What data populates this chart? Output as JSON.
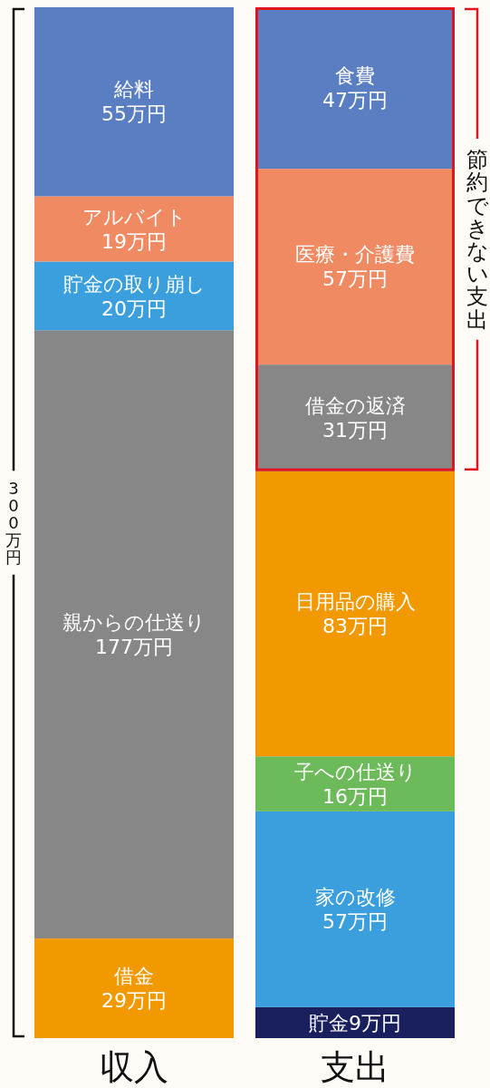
{
  "chart_data": {
    "type": "bar",
    "stacked": true,
    "categories": [
      "収入",
      "支出"
    ],
    "series": [
      {
        "name": "借金",
        "color": "#f29900",
        "values": [
          29,
          null
        ],
        "value_labels": [
          "29万円",
          null
        ]
      },
      {
        "name": "親からの仕送り",
        "color": "#878787",
        "values": [
          177,
          null
        ],
        "value_labels": [
          "177万円",
          null
        ]
      },
      {
        "name": "貯金の取り崩し",
        "color": "#3a9fdc",
        "values": [
          20,
          null
        ],
        "value_labels": [
          "20万円",
          null
        ]
      },
      {
        "name": "アルバイト",
        "color": "#ef8a62",
        "values": [
          19,
          null
        ],
        "value_labels": [
          "19万円",
          null
        ]
      },
      {
        "name": "給料",
        "color": "#5a7ec2",
        "values": [
          55,
          null
        ],
        "value_labels": [
          "55万円",
          null
        ]
      },
      {
        "name": "貯金",
        "color": "#1a1f5e",
        "values": [
          null,
          9
        ],
        "value_labels": [
          null,
          "9万円"
        ]
      },
      {
        "name": "家の改修",
        "color": "#3a9fdc",
        "values": [
          null,
          57
        ],
        "value_labels": [
          null,
          "57万円"
        ]
      },
      {
        "name": "子への仕送り",
        "color": "#6dba5a",
        "values": [
          null,
          16
        ],
        "value_labels": [
          null,
          "16万円"
        ]
      },
      {
        "name": "日用品の購入",
        "color": "#f29900",
        "values": [
          null,
          83
        ],
        "value_labels": [
          null,
          "83万円"
        ]
      },
      {
        "name": "借金の返済",
        "color": "#878787",
        "values": [
          null,
          31
        ],
        "value_labels": [
          null,
          "31万円"
        ]
      },
      {
        "name": "医療・介護費",
        "color": "#ef8a62",
        "values": [
          null,
          57
        ],
        "value_labels": [
          null,
          "57万円"
        ]
      },
      {
        "name": "食費",
        "color": "#5a7ec2",
        "values": [
          null,
          47
        ],
        "value_labels": [
          null,
          "47万円"
        ]
      }
    ],
    "annotations": [
      "300万円",
      "節約できない支出"
    ],
    "legend": false
  }
}
